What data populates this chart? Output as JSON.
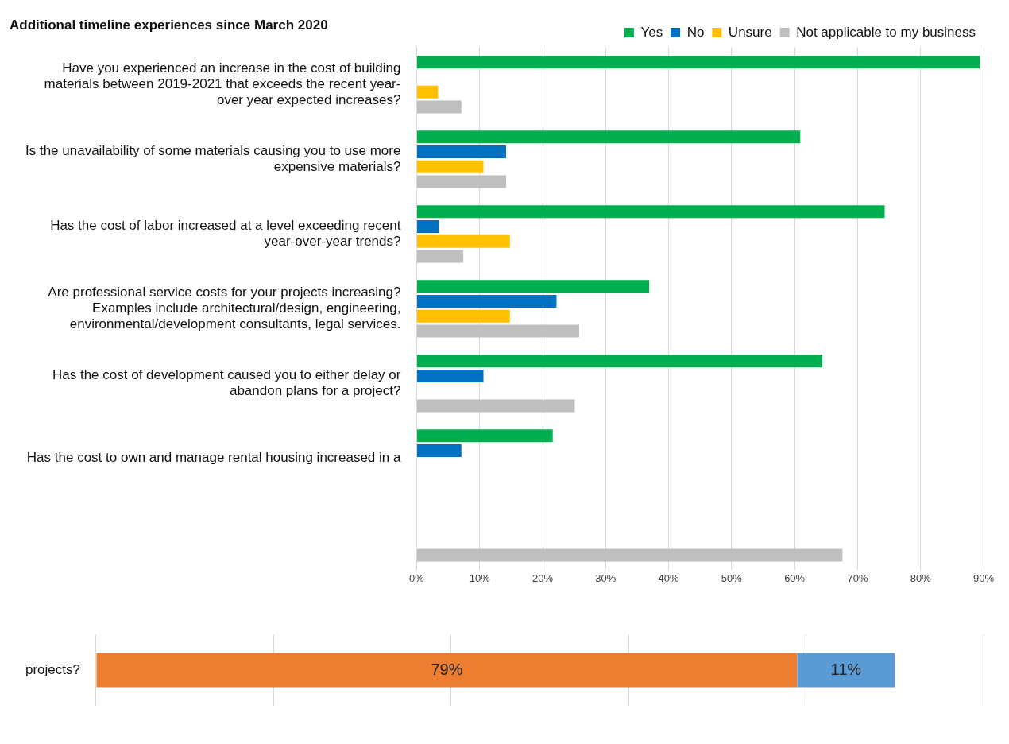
{
  "chart_data": [
    {
      "type": "bar",
      "orientation": "horizontal",
      "title": "Additional timeline experiences since March 2020",
      "categories": [
        "Have you experienced an increase in the cost of building\nmaterials between 2019-2021 that exceeds the recent year-\nover year expected increases?",
        "Is the unavailability of some materials causing you to use more\nexpensive materials?",
        "Has the cost of labor increased at a level exceeding recent\nyear-over-year trends?",
        "Are professional service costs for your projects increasing?\nExamples include architectural/design, engineering,\nenvironmental/development consultants, legal services.",
        "Has the cost of development caused you to either delay or\nabandon plans for a project?",
        "Has the cost to own and manage rental housing increased in a",
        null
      ],
      "series": [
        {
          "name": "Yes",
          "color": "#00b050",
          "values": [
            89.4,
            60.9,
            74.3,
            36.9,
            64.4,
            21.6,
            null
          ]
        },
        {
          "name": "No",
          "color": "#0070c0",
          "values": [
            0,
            14.2,
            3.5,
            22.2,
            10.6,
            7.1,
            null
          ]
        },
        {
          "name": "Unsure",
          "color": "#ffc000",
          "values": [
            3.4,
            10.6,
            14.8,
            14.8,
            0,
            null,
            null
          ]
        },
        {
          "name": "Not applicable to my business",
          "color": "#bfbfbf",
          "values": [
            7.1,
            14.2,
            7.4,
            25.8,
            25.1,
            null,
            67.6
          ]
        }
      ],
      "xlim": [
        0,
        90
      ],
      "xticks": [
        {
          "value": 0,
          "label": "0%"
        },
        {
          "value": 10,
          "label": "10%"
        },
        {
          "value": 20,
          "label": "20%"
        },
        {
          "value": 30,
          "label": "30%"
        },
        {
          "value": 40,
          "label": "40%"
        },
        {
          "value": 50,
          "label": "50%"
        },
        {
          "value": 60,
          "label": "60%"
        },
        {
          "value": 70,
          "label": "70%"
        },
        {
          "value": 80,
          "label": "80%"
        },
        {
          "value": 90,
          "label": "90%"
        }
      ],
      "grid": "x",
      "legend": "top right"
    },
    {
      "type": "bar",
      "orientation": "horizontal",
      "stacked": true,
      "categories": [
        "projects?"
      ],
      "series": [
        {
          "color": "#ed7d31",
          "values": [
            79
          ],
          "value_labels": [
            "79%"
          ]
        },
        {
          "color": "#5b9bd5",
          "values": [
            11
          ],
          "value_labels": [
            "11%"
          ]
        }
      ],
      "xlim": [
        0,
        100
      ],
      "xticks": [
        {
          "value": 0,
          "label": null
        },
        {
          "value": 20,
          "label": null
        },
        {
          "value": 40,
          "label": null
        },
        {
          "value": 60,
          "label": null
        },
        {
          "value": 80,
          "label": null
        },
        {
          "value": 100,
          "label": null
        }
      ],
      "grid": "x",
      "tick_labels": "y",
      "legend": false
    }
  ]
}
